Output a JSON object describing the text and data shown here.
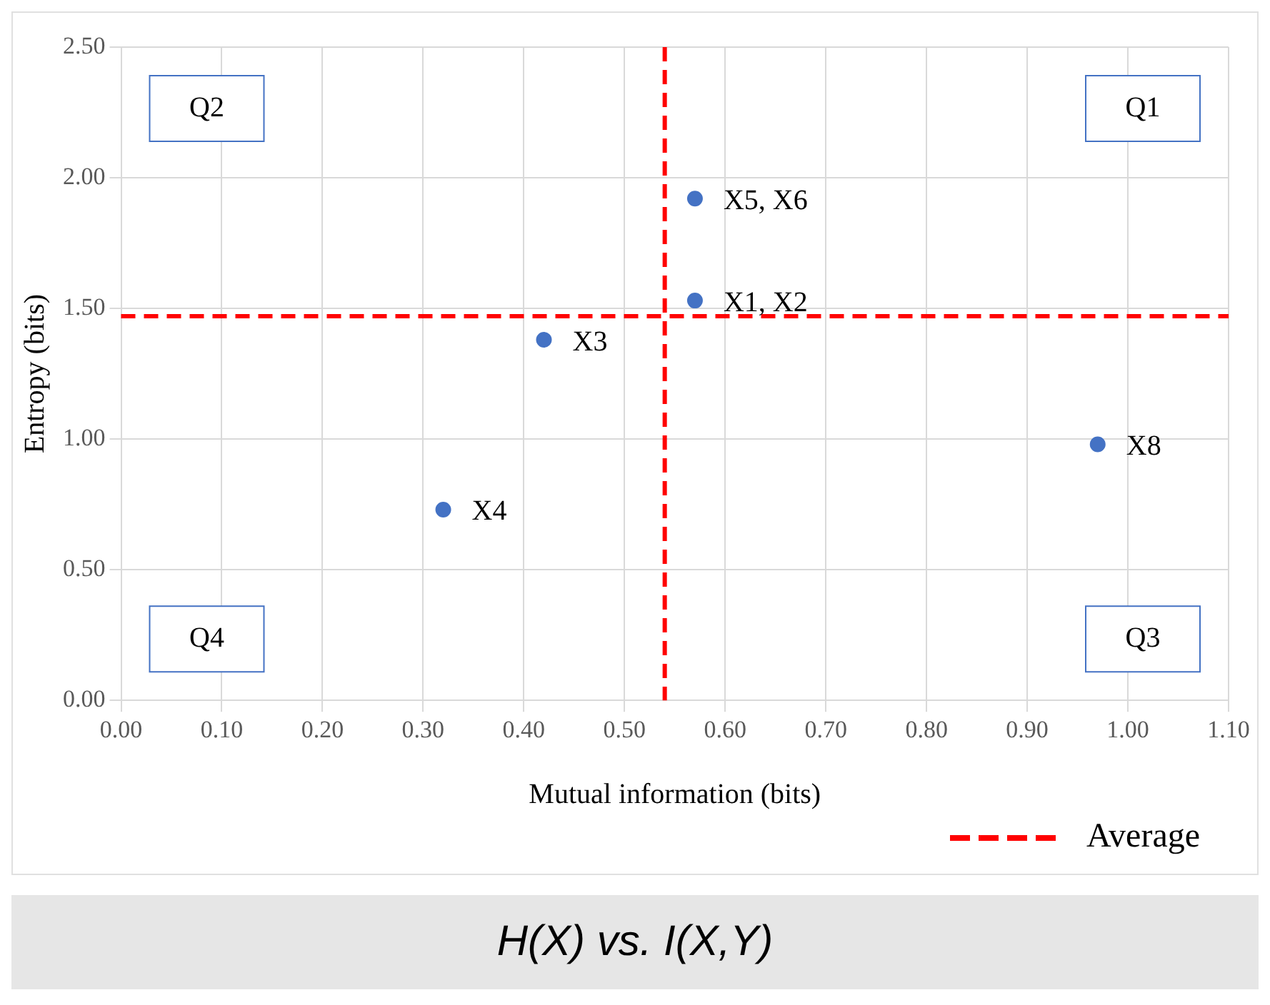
{
  "chart_data": {
    "type": "scatter",
    "title": "H(X) vs. I(X,Y)",
    "xlabel": "Mutual information (bits)",
    "ylabel": "Entropy (bits)",
    "x": [
      0.57,
      0.57,
      0.42,
      0.32,
      0.97
    ],
    "series": [
      {
        "color": "#4472c4",
        "values": [
          1.92,
          1.53,
          1.38,
          0.73,
          0.98
        ]
      }
    ],
    "xlim": [
      0,
      1.1
    ],
    "xticks": [
      {
        "value": 0,
        "label": "0.00"
      },
      {
        "value": 0.1,
        "label": "0.10"
      },
      {
        "value": 0.2,
        "label": "0.20"
      },
      {
        "value": 0.3,
        "label": "0.30"
      },
      {
        "value": 0.4,
        "label": "0.40"
      },
      {
        "value": 0.5,
        "label": "0.50"
      },
      {
        "value": 0.6,
        "label": "0.60"
      },
      {
        "value": 0.7,
        "label": "0.70"
      },
      {
        "value": 0.8,
        "label": "0.80"
      },
      {
        "value": 0.9,
        "label": "0.90"
      },
      {
        "value": 1,
        "label": "1.00"
      },
      {
        "value": 1.1,
        "label": "1.10"
      }
    ],
    "ylim": [
      0,
      2.5
    ],
    "yticks": [
      {
        "value": 0,
        "label": "0.00"
      },
      {
        "value": 0.5,
        "label": "0.50"
      },
      {
        "value": 1,
        "label": "1.00"
      },
      {
        "value": 1.5,
        "label": "1.50"
      },
      {
        "value": 2,
        "label": "2.00"
      },
      {
        "value": 2.5,
        "label": "2.50"
      }
    ],
    "ref_lines": [
      {
        "axis": "x",
        "value": 0.54,
        "label": "Average",
        "color": "#ff0000",
        "line_style": "dashed"
      },
      {
        "axis": "y",
        "value": 1.47,
        "color": "#ff0000",
        "line_style": "dashed"
      }
    ],
    "annotations": [
      "Q1",
      "Q2",
      "Q3",
      "Q4",
      {
        "text": "X5, X6",
        "x": 0.57,
        "y": 1.92
      },
      {
        "text": "X1, X2",
        "x": 0.57,
        "y": 1.53
      },
      {
        "text": "X3",
        "x": 0.42,
        "y": 1.38
      },
      {
        "text": "X4",
        "x": 0.32,
        "y": 0.73
      },
      {
        "text": "X8",
        "x": 0.97,
        "y": 0.98
      }
    ],
    "marker": "circle",
    "grid": true,
    "legend": "bottom right"
  }
}
